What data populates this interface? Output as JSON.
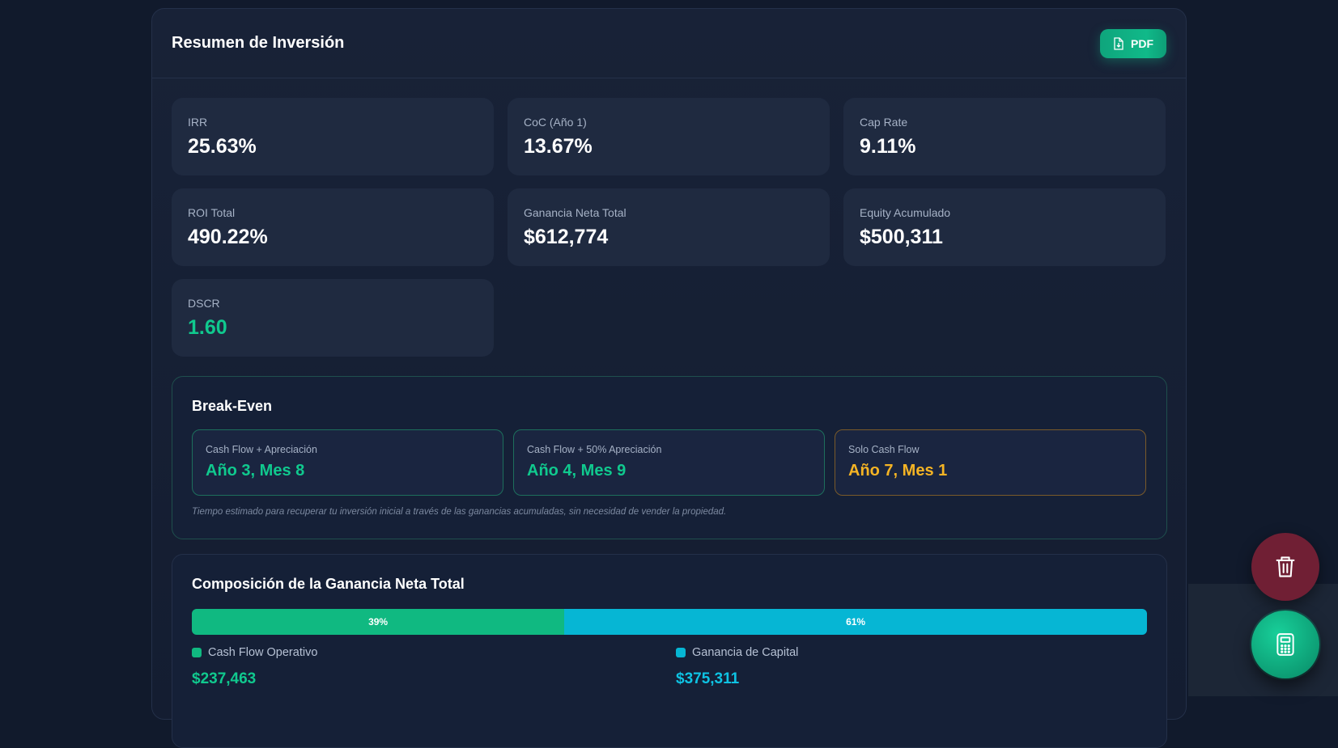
{
  "summary": {
    "title": "Resumen de Inversión",
    "pdf_label": "PDF"
  },
  "metrics": [
    {
      "label": "IRR",
      "value": "25.63%"
    },
    {
      "label": "CoC (Año 1)",
      "value": "13.67%"
    },
    {
      "label": "Cap Rate",
      "value": "9.11%"
    },
    {
      "label": "ROI Total",
      "value": "490.22%"
    },
    {
      "label": "Ganancia Neta Total",
      "value": "$612,774"
    },
    {
      "label": "Equity Acumulado",
      "value": "$500,311"
    },
    {
      "label": "DSCR",
      "value": "1.60",
      "color": "#10c98e"
    }
  ],
  "breakeven": {
    "title": "Break-Even",
    "cards": [
      {
        "label": "Cash Flow + Apreciación",
        "value": "Año 3, Mes 8",
        "color": "#10c98e"
      },
      {
        "label": "Cash Flow + 50% Apreciación",
        "value": "Año 4, Mes 9",
        "color": "#10c98e"
      },
      {
        "label": "Solo Cash Flow",
        "value": "Año 7, Mes 1",
        "color": "#f5b424"
      }
    ],
    "note": "Tiempo estimado para recuperar tu inversión inicial a través de las ganancias acumuladas, sin necesidad de vender la propiedad."
  },
  "composition": {
    "title": "Composición de la Ganancia Neta Total",
    "segments": [
      {
        "label": "39%",
        "fraction": 0.39,
        "color": "#10b981",
        "legend": "Cash Flow Operativo",
        "amount": "$237,463"
      },
      {
        "label": "61%",
        "fraction": 0.61,
        "color": "#06b6d4",
        "legend": "Ganancia de Capital",
        "amount": "$375,311"
      }
    ]
  },
  "fabs": {
    "delete_icon": "trash-icon",
    "calculator_icon": "calculator-icon"
  }
}
